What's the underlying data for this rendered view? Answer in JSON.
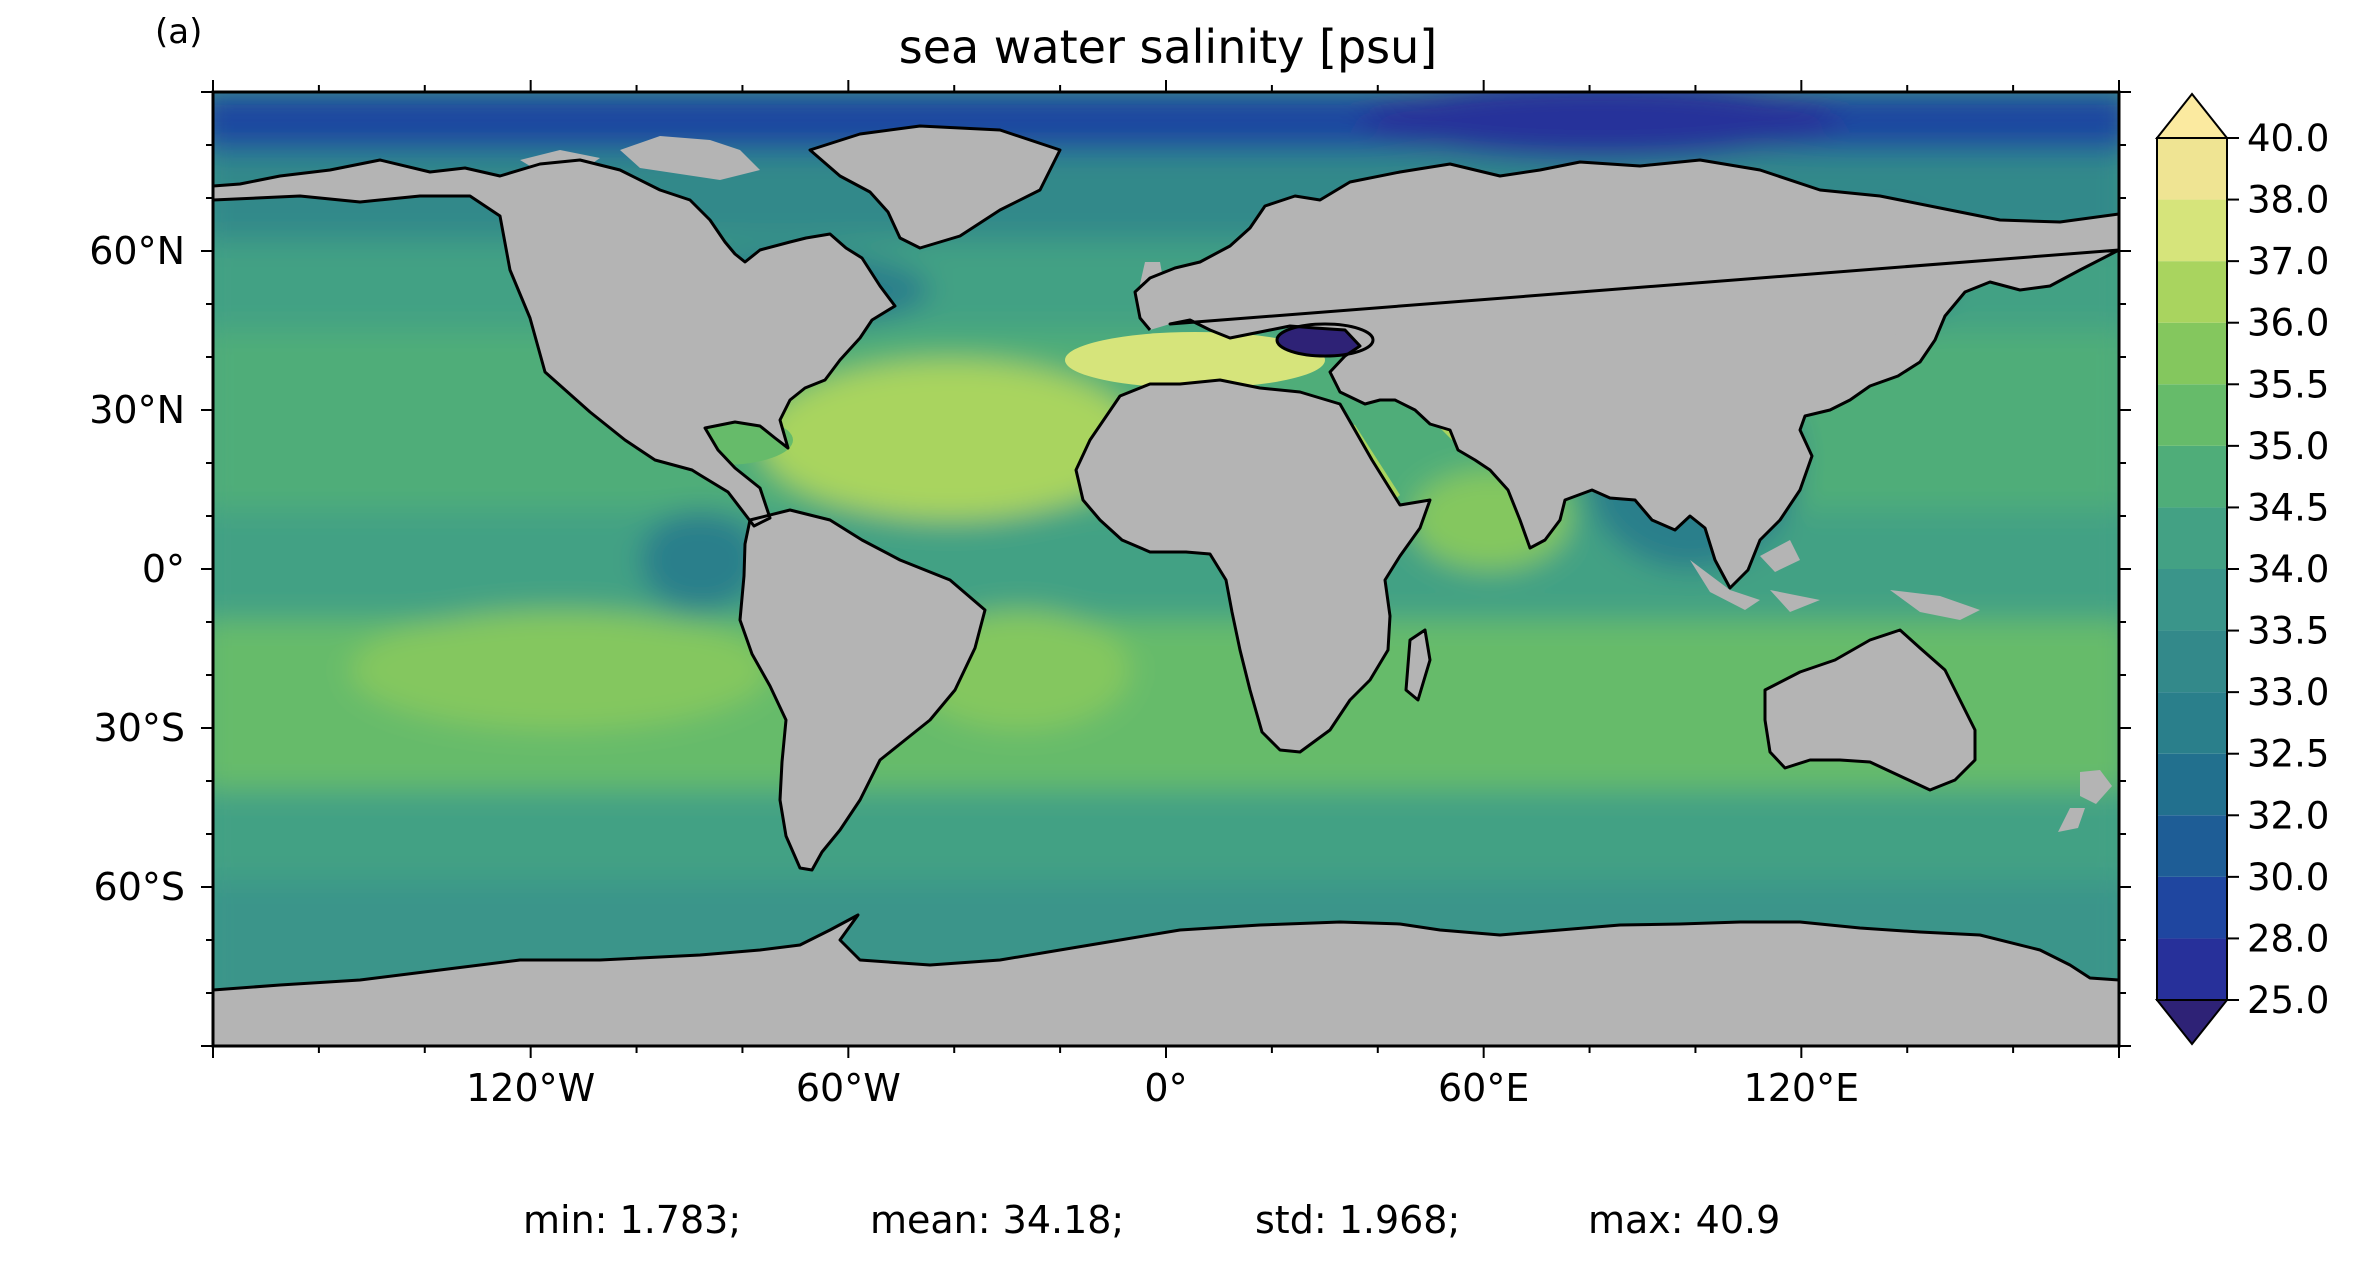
{
  "panel_label": "(a)",
  "title": "sea water salinity [psu]",
  "map": {
    "projection": "equirectangular",
    "extent": {
      "lon": [
        -180,
        180
      ],
      "lat": [
        -90,
        90
      ]
    },
    "land_color": "#b4b4b4",
    "x_ticks": [
      {
        "lon": -120,
        "label": "120°W"
      },
      {
        "lon": -60,
        "label": "60°W"
      },
      {
        "lon": 0,
        "label": "0°"
      },
      {
        "lon": 60,
        "label": "60°E"
      },
      {
        "lon": 120,
        "label": "120°E"
      }
    ],
    "y_ticks": [
      {
        "lat": 60,
        "label": "60°N"
      },
      {
        "lat": 30,
        "label": "30°N"
      },
      {
        "lat": 0,
        "label": "0°"
      },
      {
        "lat": -30,
        "label": "30°S"
      },
      {
        "lat": -60,
        "label": "60°S"
      }
    ]
  },
  "colorbar": {
    "levels": [
      "25.0",
      "28.0",
      "30.0",
      "32.0",
      "32.5",
      "33.0",
      "33.5",
      "34.0",
      "34.5",
      "35.0",
      "35.5",
      "36.0",
      "37.0",
      "38.0",
      "40.0"
    ],
    "colors": [
      "#2e2276",
      "#27309a",
      "#1f46a0",
      "#1e5d96",
      "#22708e",
      "#2a7f8b",
      "#33898a",
      "#3a958a",
      "#43a184",
      "#4fad79",
      "#66bb6a",
      "#84c75e",
      "#a9d45f",
      "#d6e47b",
      "#efe493",
      "#fbeaa0"
    ],
    "extend": "both"
  },
  "stats": {
    "min": "min: 1.783;",
    "mean": "mean: 34.18;",
    "std": "std: 1.968;",
    "max": "max: 40.9"
  }
}
